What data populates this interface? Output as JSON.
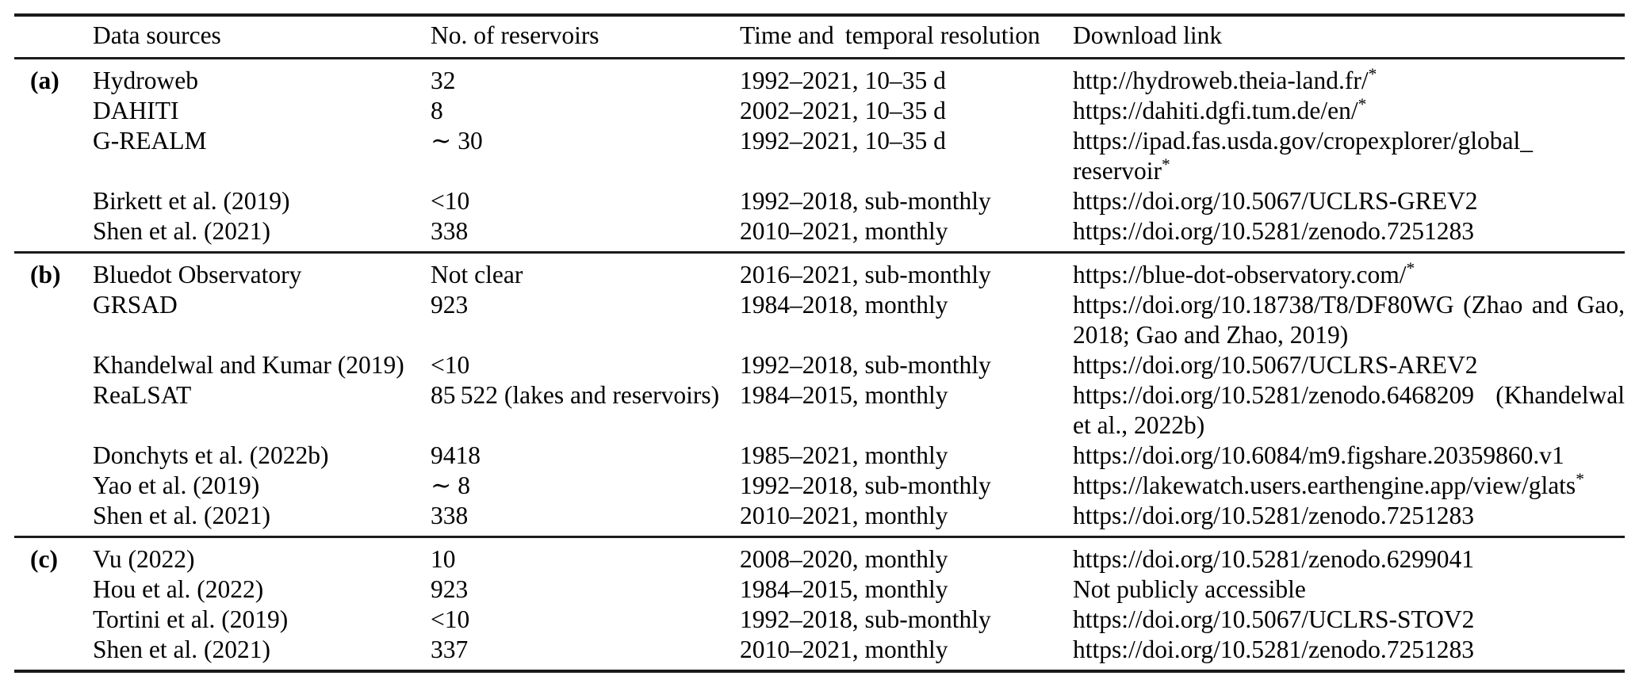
{
  "page": {
    "background_color": "#ffffff",
    "text_color": "#000000",
    "rule_color": "#1b1b1b"
  },
  "table": {
    "header": {
      "row_label": "",
      "data_sources": "Data sources",
      "reservoirs": "No. of reservoirs",
      "time": "Time and  temporal resolution",
      "download": "Download link"
    },
    "sections": [
      {
        "label": "(a)",
        "rows": [
          {
            "source": "Hydroweb",
            "reservoirs": "32",
            "time": "1992–2021, 10–35 d",
            "link": "http://hydroweb.theia-land.fr/",
            "sup": "*"
          },
          {
            "source": "DAHITI",
            "reservoirs": "8",
            "time": "2002–2021, 10–35 d",
            "link": "https://dahiti.dgfi.tum.de/en/",
            "sup": "*"
          },
          {
            "source": "G-REALM",
            "reservoirs": "∼ 30",
            "time": "1992–2021, 10–35 d",
            "link": "https://ipad.fas.usda.gov/cropexplorer/global_​reservoir",
            "sup": "*"
          },
          {
            "source": "Birkett et al. (2019)",
            "reservoirs": "<10",
            "time": "1992–2018, sub-monthly",
            "link": "https://doi.org/10.5067/UCLRS-GREV2",
            "sup": ""
          },
          {
            "source": "Shen et al. (2021)",
            "reservoirs": "338",
            "time": "2010–2021, monthly",
            "link": "https://doi.org/10.5281/zenodo.7251283",
            "sup": ""
          }
        ]
      },
      {
        "label": "(b)",
        "rows": [
          {
            "source": "Bluedot Observatory",
            "reservoirs": "Not clear",
            "time": "2016–2021, sub-monthly",
            "link": "https://blue-dot-observatory.com/",
            "sup": "*"
          },
          {
            "source": "GRSAD",
            "reservoirs": "923",
            "time": "1984–2018, monthly",
            "link": "https://doi.org/10.18738/T8/DF80WG (Zhao and Gao, 2018; Gao and Zhao, 2019)",
            "sup": ""
          },
          {
            "source": "Khandelwal and Kumar (2019)",
            "reservoirs": "<10",
            "time": "1992–2018, sub-monthly",
            "link": "https://doi.org/10.5067/UCLRS-AREV2",
            "sup": ""
          },
          {
            "source": "ReaLSAT",
            "reservoirs": "85 522 (lakes and reservoirs)",
            "time": "1984–2015, monthly",
            "link": "https://doi.org/10.5281/zenodo.6468209 (Khandelwal et al., 2022b)",
            "sup": ""
          },
          {
            "source": "Donchyts et al. (2022b)",
            "reservoirs": "9418",
            "time": "1985–2021, monthly",
            "link": "https://doi.org/10.6084/m9.figshare.20359860.v1",
            "sup": ""
          },
          {
            "source": "Yao et al. (2019)",
            "reservoirs": "∼ 8",
            "time": "1992–2018, sub-monthly",
            "link": "https://lakewatch.users.earthengine.app/view/glats",
            "sup": "*"
          },
          {
            "source": "Shen et al. (2021)",
            "reservoirs": "338",
            "time": "2010–2021, monthly",
            "link": "https://doi.org/10.5281/zenodo.7251283",
            "sup": ""
          }
        ]
      },
      {
        "label": "(c)",
        "rows": [
          {
            "source": "Vu (2022)",
            "reservoirs": "10",
            "time": "2008–2020, monthly",
            "link": "https://doi.org/10.5281/zenodo.6299041",
            "sup": ""
          },
          {
            "source": "Hou et al. (2022)",
            "reservoirs": "923",
            "time": "1984–2015, monthly",
            "link": "Not publicly accessible",
            "sup": ""
          },
          {
            "source": "Tortini et al. (2019)",
            "reservoirs": "<10",
            "time": "1992–2018, sub-monthly",
            "link": "https://doi.org/10.5067/UCLRS-STOV2",
            "sup": ""
          },
          {
            "source": "Shen et al. (2021)",
            "reservoirs": "337",
            "time": "2010–2021, monthly",
            "link": "https://doi.org/10.5281/zenodo.7251283",
            "sup": ""
          }
        ]
      }
    ]
  }
}
